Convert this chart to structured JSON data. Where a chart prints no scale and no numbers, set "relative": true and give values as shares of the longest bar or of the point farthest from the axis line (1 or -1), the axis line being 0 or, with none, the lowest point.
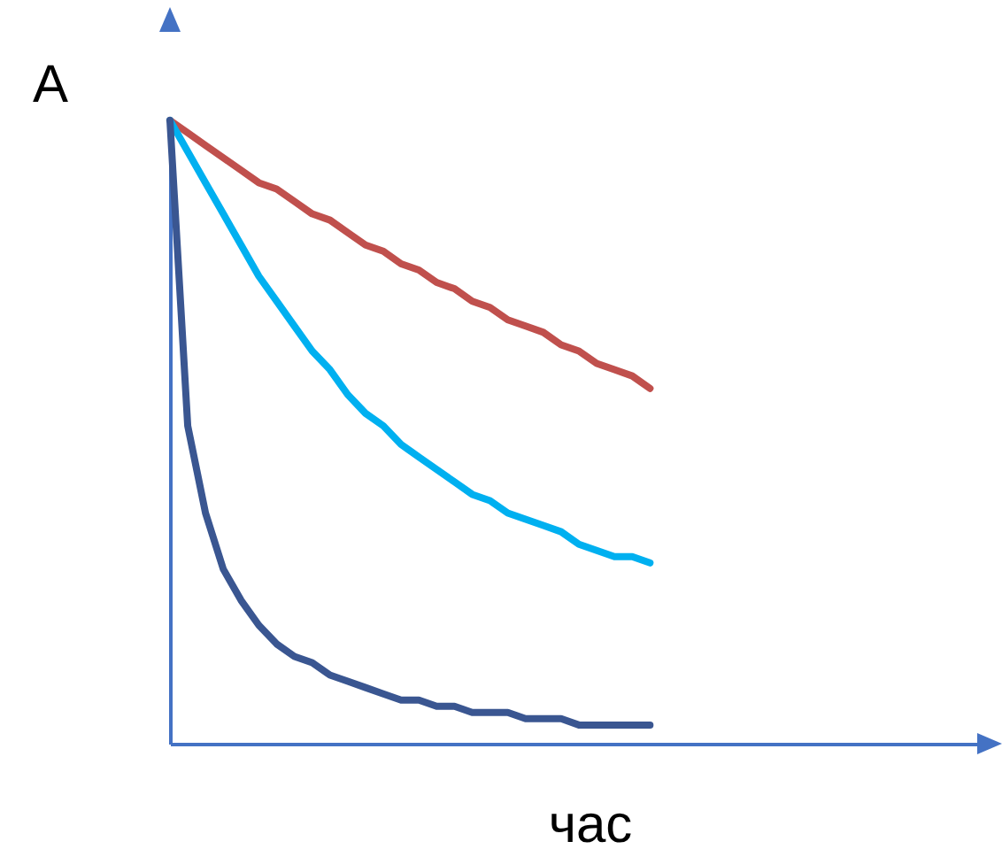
{
  "chart_data": {
    "type": "line",
    "relative": true,
    "xlabel": "час",
    "ylabel": "A",
    "grid": false,
    "marker": "none",
    "line_style": "solid",
    "categories": [
      null,
      null,
      null,
      null,
      null,
      null,
      null,
      null,
      null,
      null,
      null,
      null,
      null,
      null,
      null,
      null,
      null,
      null,
      null,
      null,
      null,
      null,
      null,
      null,
      null,
      null,
      null,
      null
    ],
    "series": [
      {
        "color": "#c0504d",
        "values": [
          1,
          0.98,
          0.96,
          0.94,
          0.92,
          0.9,
          0.89,
          0.87,
          0.85,
          0.84,
          0.82,
          0.8,
          0.79,
          0.77,
          0.76,
          0.74,
          0.73,
          0.71,
          0.7,
          0.68,
          0.67,
          0.66,
          0.64,
          0.63,
          0.61,
          0.6,
          0.59,
          0.57
        ]
      },
      {
        "color": "#00b0f0",
        "values": [
          1,
          0.95,
          0.9,
          0.85,
          0.8,
          0.75,
          0.71,
          0.67,
          0.63,
          0.6,
          0.56,
          0.53,
          0.51,
          0.48,
          0.46,
          0.44,
          0.42,
          0.4,
          0.39,
          0.37,
          0.36,
          0.35,
          0.34,
          0.32,
          0.31,
          0.3,
          0.3,
          0.29
        ]
      },
      {
        "color": "#3a5691",
        "values": [
          1,
          0.51,
          0.37,
          0.28,
          0.23,
          0.19,
          0.16,
          0.14,
          0.13,
          0.11,
          0.1,
          0.09,
          0.08,
          0.07,
          0.07,
          0.06,
          0.06,
          0.05,
          0.05,
          0.05,
          0.04,
          0.04,
          0.04,
          0.03,
          0.03,
          0.03,
          0.03,
          0.03
        ]
      }
    ]
  }
}
